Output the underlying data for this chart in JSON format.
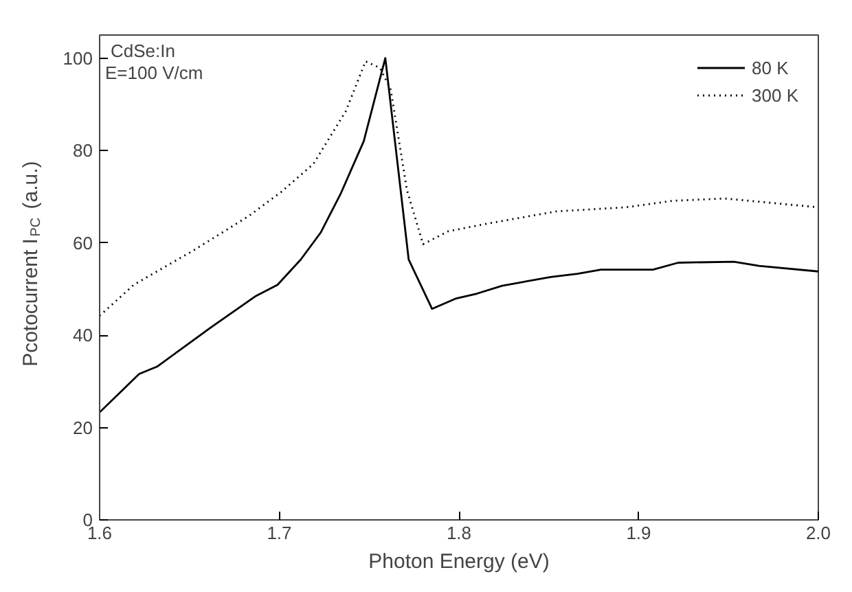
{
  "chart_data": {
    "type": "line",
    "xlabel": "Photon Energy (eV)",
    "ylabel": "Pcotocurrent I$_{PC}$ (a.u.)",
    "annotations": [
      "CdSe:In",
      "E=100 V/cm"
    ],
    "xlim": [
      1.6,
      2.0
    ],
    "xticks": [
      1.6,
      1.7,
      1.8,
      1.9,
      {
        "value": 2.0,
        "label": "2.0"
      }
    ],
    "ylim": [
      0,
      105
    ],
    "yticks": [
      0,
      20,
      40,
      60,
      80,
      100
    ],
    "grid": false,
    "legend": "top right",
    "marker": "none",
    "series": [
      {
        "name": "80 K",
        "color": "#000000",
        "line_style": "solid",
        "x": [
          1.6,
          1.622,
          1.632,
          1.662,
          1.687,
          1.699,
          1.712,
          1.723,
          1.734,
          1.747,
          1.759,
          1.772,
          1.785,
          1.798,
          1.81,
          1.824,
          1.851,
          1.866,
          1.879,
          1.908,
          1.922,
          1.953,
          1.967,
          2.0
        ],
        "values": [
          23.3,
          31.6,
          33.2,
          41.7,
          48.5,
          50.9,
          56.4,
          62.2,
          70.5,
          82,
          100,
          56.4,
          45.7,
          47.9,
          49,
          50.7,
          52.6,
          53.3,
          54.2,
          54.2,
          55.7,
          55.9,
          55,
          53.8
        ]
      },
      {
        "name": "300 K",
        "color": "#000000",
        "line_style": "dotted",
        "x": [
          1.6,
          1.619,
          1.652,
          1.683,
          1.701,
          1.719,
          1.737,
          1.748,
          1.756,
          1.762,
          1.771,
          1.78,
          1.794,
          1.815,
          1.854,
          1.893,
          1.919,
          1.948,
          2.0
        ],
        "values": [
          44.2,
          50.9,
          58.3,
          65.8,
          71,
          77.1,
          88.5,
          99.3,
          97.9,
          93.2,
          71.5,
          59.7,
          62.5,
          64.1,
          66.8,
          67.7,
          69.1,
          69.6,
          67.7
        ]
      }
    ]
  }
}
